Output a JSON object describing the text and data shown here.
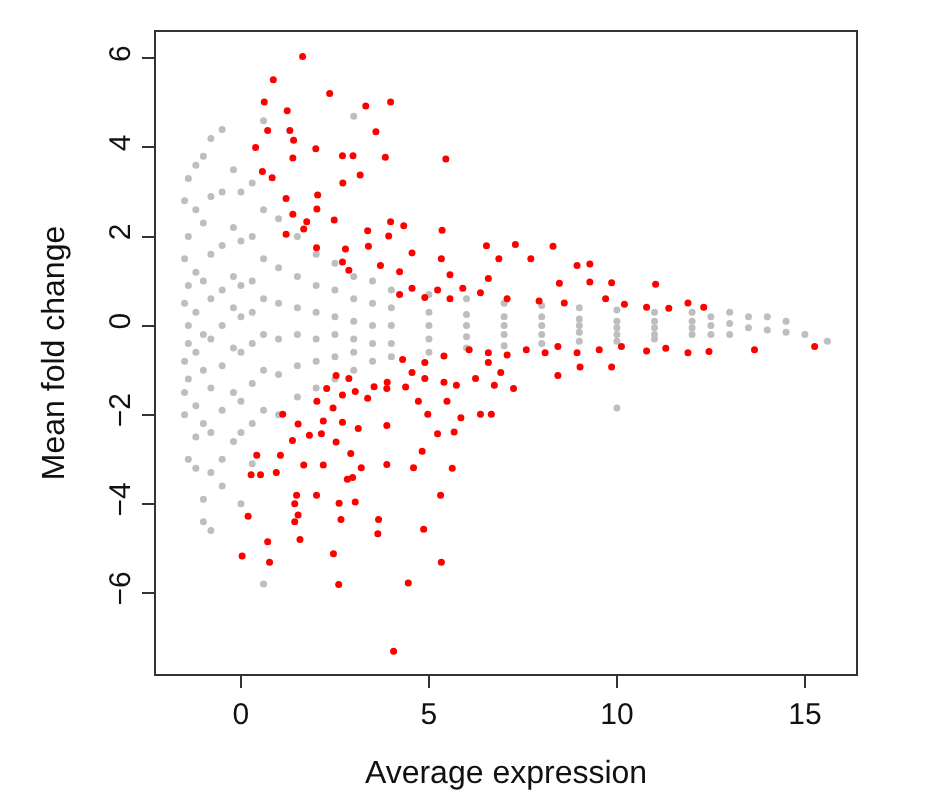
{
  "chart_data": {
    "type": "scatter",
    "xlabel": "Average expression",
    "ylabel": "Mean fold change",
    "xlim": [
      -2.26,
      16.36
    ],
    "ylim": [
      -7.82,
      6.59
    ],
    "xticks": [
      0,
      5,
      10,
      15
    ],
    "yticks": [
      -6,
      -4,
      -2,
      0,
      2,
      4,
      6
    ],
    "marker": "circle",
    "series": [
      {
        "color": "#bebebe",
        "x": [
          -1.5,
          -1.5,
          -1.5,
          -1.5,
          -1.5,
          -1.5,
          -1.4,
          -1.4,
          -1.4,
          -1.4,
          -1.4,
          -1.4,
          -1.4,
          -1.2,
          -1.2,
          -1.2,
          -1.2,
          -1.2,
          -1.2,
          -1.2,
          -1.2,
          -1.0,
          -1.0,
          -1.0,
          -1.0,
          -1.0,
          -1.0,
          -1.0,
          -1.0,
          -0.8,
          -0.8,
          -0.8,
          -0.8,
          -0.8,
          -0.8,
          -0.8,
          -0.8,
          -0.8,
          -0.5,
          -0.5,
          -0.5,
          -0.5,
          -0.5,
          -0.5,
          -0.5,
          -0.5,
          -0.5,
          -0.2,
          -0.2,
          -0.2,
          -0.2,
          -0.2,
          -0.2,
          -0.2,
          0,
          0,
          0,
          0,
          0,
          0,
          0,
          0,
          0.3,
          0.3,
          0.3,
          0.3,
          0.3,
          0.3,
          0.3,
          0.3,
          0.6,
          0.6,
          0.6,
          0.6,
          0.6,
          0.6,
          0.6,
          0.6,
          1.0,
          1.0,
          1.0,
          1.0,
          1.0,
          1.0,
          1.5,
          1.5,
          1.5,
          1.5,
          1.5,
          1.5,
          2.0,
          2.0,
          2.0,
          2.0,
          2.0,
          2.0,
          2.5,
          2.5,
          2.5,
          2.5,
          2.5,
          2.5,
          3.0,
          3.0,
          3.0,
          3.0,
          3.0,
          3.0,
          3.0,
          3.5,
          3.5,
          3.5,
          3.5,
          3.5,
          4,
          4,
          4,
          4,
          4,
          5,
          5,
          5,
          5,
          5,
          6,
          6,
          6,
          6,
          6,
          7,
          7,
          7,
          7,
          7,
          8,
          8,
          8,
          8,
          8,
          9,
          9,
          9,
          9,
          9,
          10,
          10,
          10,
          10,
          10,
          10,
          11,
          11,
          11,
          11,
          11,
          12,
          12,
          12,
          12,
          12.5,
          12.5,
          12.5,
          13,
          13,
          13,
          13.5,
          13.5,
          14,
          14,
          14.5,
          14.5,
          15,
          15.6
        ],
        "values": [
          2.8,
          1.5,
          0.5,
          -0.8,
          -2.0,
          -1.5,
          3.3,
          2.0,
          0.9,
          0,
          -0.4,
          -1.2,
          -3.0,
          3.6,
          2.6,
          1.2,
          0.3,
          -0.6,
          -1.8,
          -2.5,
          -3.2,
          3.8,
          2.3,
          1.0,
          -0.2,
          -1.0,
          -2.2,
          -3.9,
          -4.4,
          4.2,
          2.9,
          1.6,
          0.6,
          -0.3,
          -1.4,
          -2.4,
          -3.3,
          -4.6,
          4.4,
          3.0,
          1.8,
          0.8,
          0,
          -0.9,
          -1.9,
          -3.0,
          -3.6,
          3.5,
          2.2,
          1.1,
          0.4,
          -0.5,
          -1.5,
          -2.6,
          3.0,
          1.9,
          0.9,
          0.2,
          -0.6,
          -1.7,
          -2.4,
          -4.0,
          3.2,
          2.0,
          1.0,
          0.3,
          -0.4,
          -1.3,
          -2.2,
          -3.1,
          4.6,
          2.6,
          1.5,
          0.6,
          -0.2,
          -1.0,
          -1.9,
          -5.8,
          2.4,
          1.3,
          0.5,
          -0.3,
          -1.1,
          -2.0,
          2.0,
          1.1,
          0.4,
          -0.2,
          -0.9,
          -1.6,
          1.6,
          0.9,
          0.3,
          -0.3,
          -0.8,
          -1.4,
          1.4,
          0.8,
          0.2,
          -0.2,
          -0.7,
          -1.2,
          4.7,
          1.1,
          0.6,
          0.1,
          -0.3,
          -0.6,
          -1.0,
          1.0,
          0.5,
          0,
          -0.4,
          -0.8,
          0.8,
          0.4,
          0,
          -0.4,
          -0.7,
          0.7,
          0.3,
          0,
          -0.3,
          -0.6,
          0.6,
          0.25,
          0,
          -0.25,
          -0.5,
          0.5,
          0.2,
          0,
          -0.2,
          -0.45,
          0.45,
          0.2,
          0,
          -0.2,
          -0.4,
          0.4,
          0.15,
          0,
          -0.15,
          -0.35,
          0.35,
          0.1,
          -0.05,
          -0.2,
          -0.35,
          -1.85,
          0.3,
          0.1,
          -0.05,
          -0.2,
          -0.3,
          0.3,
          0.1,
          -0.05,
          -0.2,
          0.2,
          0,
          -0.2,
          0.3,
          0.05,
          -0.2,
          0.2,
          -0.05,
          0.2,
          -0.1,
          0.1,
          -0.15,
          -0.2,
          -0.35
        ]
      },
      {
        "color": "#ff0000",
        "x": [
          1.64,
          0.86,
          0.62,
          2.36,
          3.32,
          3.98,
          1.23,
          0.71,
          1.3,
          1.4,
          0.39,
          1.99,
          3.59,
          2.7,
          2.98,
          3.84,
          5.45,
          0.57,
          0.83,
          3.17,
          2.71,
          1.38,
          1.2,
          2.04,
          1.38,
          2.02,
          1.75,
          2.48,
          1.2,
          1.67,
          3.37,
          3.98,
          4.33,
          5.35,
          3.93,
          2.01,
          2.78,
          3.39,
          4.55,
          6.53,
          7.3,
          8.3,
          2.7,
          3.71,
          5.33,
          6.86,
          7.71,
          8.94,
          9.28,
          2.87,
          4.22,
          5.56,
          6.58,
          9.28,
          9.86,
          11.03,
          8.47,
          4.55,
          5.23,
          5.9,
          6.37,
          7.08,
          7.93,
          8.6,
          9.7,
          10.2,
          10.79,
          11.38,
          11.89,
          12.31,
          4.89,
          5.56,
          4.22,
          15.26,
          13.66,
          12.45,
          11.89,
          11.3,
          10.79,
          10.12,
          9.53,
          8.94,
          8.43,
          8.09,
          7.59,
          7.08,
          6.58,
          6.07,
          9.86,
          9.02,
          8.43,
          6.58,
          6.91,
          6.24,
          7.25,
          6.74,
          5.4,
          4.89,
          4.3,
          4.55,
          3.89,
          3.54,
          2.87,
          2.53,
          2.28,
          3.04,
          3.88,
          4.38,
          4.89,
          5.4,
          5.73,
          2.02,
          2.45,
          2.7,
          3.37,
          4.72,
          5.48,
          6.37,
          6.66,
          1.11,
          1.52,
          2.19,
          2.7,
          3.12,
          3.88,
          4.97,
          5.85,
          5.23,
          5.67,
          1.37,
          1.82,
          2.14,
          2.53,
          2.92,
          0.42,
          1.05,
          2.19,
          1.67,
          3.2,
          3.88,
          4.59,
          4.82,
          5.62,
          0.27,
          0.52,
          0.94,
          2.83,
          2.97,
          2.01,
          1.48,
          5.31,
          1.43,
          2.61,
          3.04,
          0.19,
          1.52,
          1.43,
          2.66,
          3.66,
          3.64,
          4.86,
          0.71,
          1.57,
          2.46,
          0.03,
          0.76,
          5.33,
          2.6,
          4.45,
          4.06
        ],
        "values": [
          6.04,
          5.52,
          5.02,
          5.21,
          4.93,
          5.02,
          4.82,
          4.38,
          4.38,
          4.16,
          4.0,
          3.97,
          4.35,
          3.81,
          3.81,
          3.78,
          3.74,
          3.46,
          3.32,
          3.38,
          3.2,
          3.76,
          2.85,
          2.93,
          2.5,
          2.62,
          2.33,
          2.37,
          2.05,
          2.17,
          2.13,
          2.33,
          2.24,
          2.14,
          2.01,
          1.75,
          1.72,
          1.78,
          1.63,
          1.79,
          1.82,
          1.78,
          1.43,
          1.35,
          1.5,
          1.5,
          1.5,
          1.35,
          1.38,
          1.24,
          1.21,
          1.14,
          1.06,
          0.98,
          0.96,
          0.93,
          0.95,
          0.84,
          0.8,
          0.84,
          0.74,
          0.6,
          0.55,
          0.51,
          0.6,
          0.48,
          0.41,
          0.39,
          0.51,
          0.41,
          0.63,
          0.6,
          0.7,
          -0.47,
          -0.54,
          -0.58,
          -0.61,
          -0.51,
          -0.57,
          -0.47,
          -0.54,
          -0.61,
          -0.47,
          -0.61,
          -0.54,
          -0.66,
          -0.61,
          -0.54,
          -0.93,
          -0.93,
          -1.12,
          -0.83,
          -1.05,
          -1.19,
          -1.41,
          -1.34,
          -0.68,
          -0.83,
          -0.76,
          -1.05,
          -1.27,
          -1.37,
          -1.19,
          -1.12,
          -1.41,
          -1.48,
          -1.41,
          -1.38,
          -1.19,
          -1.27,
          -1.34,
          -1.7,
          -1.85,
          -1.56,
          -1.63,
          -1.7,
          -1.7,
          -1.99,
          -1.99,
          -1.99,
          -2.21,
          -2.14,
          -2.17,
          -2.31,
          -2.24,
          -1.99,
          -2.07,
          -2.43,
          -2.39,
          -2.58,
          -2.46,
          -2.43,
          -2.61,
          -2.87,
          -2.91,
          -2.91,
          -3.13,
          -3.13,
          -3.19,
          -3.12,
          -3.19,
          -2.82,
          -3.2,
          -3.35,
          -3.35,
          -3.3,
          -3.45,
          -3.41,
          -3.81,
          -3.81,
          -3.81,
          -4.0,
          -3.99,
          -3.96,
          -4.28,
          -4.25,
          -4.4,
          -4.35,
          -4.35,
          -4.67,
          -4.57,
          -4.85,
          -4.8,
          -5.12,
          -5.17,
          -5.31,
          -5.31,
          -5.81,
          -5.78,
          -7.31
        ]
      }
    ]
  }
}
